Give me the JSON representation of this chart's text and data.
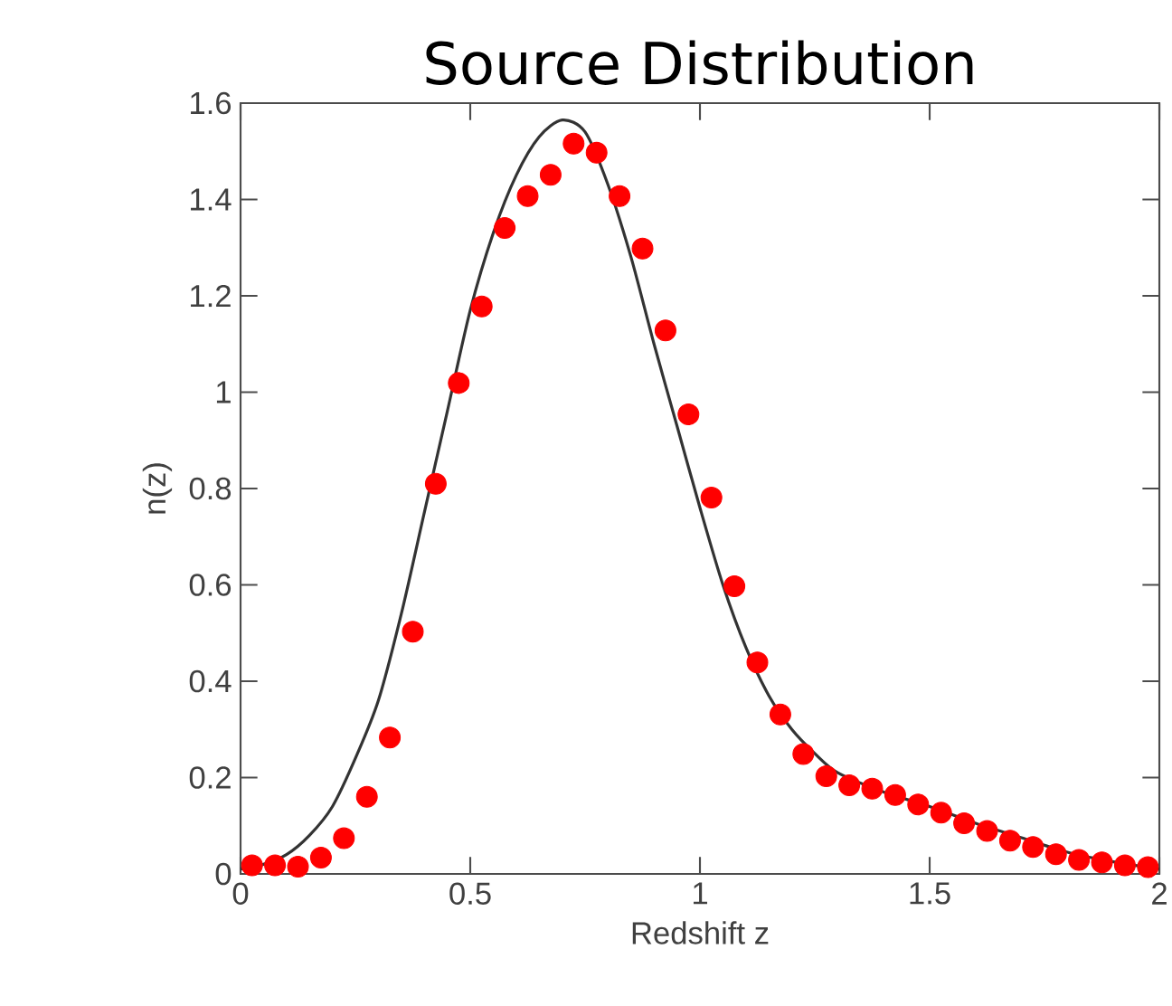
{
  "chart_data": {
    "type": "scatter",
    "title": "Source Distribution",
    "xlabel": "Redshift z",
    "ylabel": "n(z)",
    "xlim": [
      0,
      2
    ],
    "ylim": [
      0,
      1.6
    ],
    "xticks": [
      0,
      0.5,
      1,
      1.5,
      2
    ],
    "yticks": [
      0,
      0.2,
      0.4,
      0.6,
      0.8,
      1,
      1.2,
      1.4,
      1.6
    ],
    "grid": false,
    "series": [
      {
        "type": "line",
        "color": "#333333",
        "marker": "none",
        "line_style": "solid",
        "x": [
          0,
          0.05,
          0.1,
          0.15,
          0.2,
          0.25,
          0.3,
          0.35,
          0.4,
          0.45,
          0.5,
          0.55,
          0.6,
          0.65,
          0.7,
          0.75,
          0.8,
          0.85,
          0.9,
          0.95,
          1.0,
          1.05,
          1.1,
          1.15,
          1.2,
          1.25,
          1.3,
          1.4,
          1.5,
          1.6,
          1.7,
          1.8,
          1.9,
          2.0
        ],
        "values": [
          0.01,
          0.02,
          0.04,
          0.08,
          0.14,
          0.24,
          0.36,
          0.54,
          0.75,
          0.96,
          1.17,
          1.33,
          1.45,
          1.53,
          1.565,
          1.54,
          1.43,
          1.28,
          1.1,
          0.93,
          0.76,
          0.6,
          0.47,
          0.37,
          0.3,
          0.25,
          0.21,
          0.17,
          0.14,
          0.105,
          0.075,
          0.045,
          0.025,
          0.01
        ]
      },
      {
        "color": "#ff0000",
        "marker": "circle",
        "x": [
          0.025,
          0.075,
          0.125,
          0.175,
          0.225,
          0.275,
          0.325,
          0.375,
          0.425,
          0.475,
          0.525,
          0.575,
          0.625,
          0.675,
          0.725,
          0.775,
          0.825,
          0.875,
          0.925,
          0.975,
          1.025,
          1.075,
          1.125,
          1.175,
          1.225,
          1.275,
          1.325,
          1.375,
          1.425,
          1.475,
          1.525,
          1.575,
          1.625,
          1.675,
          1.725,
          1.775,
          1.825,
          1.875,
          1.925,
          1.975
        ],
        "values": [
          0.018,
          0.018,
          0.015,
          0.034,
          0.074,
          0.16,
          0.283,
          0.503,
          0.81,
          1.019,
          1.178,
          1.341,
          1.407,
          1.451,
          1.516,
          1.497,
          1.407,
          1.298,
          1.128,
          0.954,
          0.781,
          0.597,
          0.439,
          0.331,
          0.249,
          0.203,
          0.184,
          0.177,
          0.164,
          0.144,
          0.127,
          0.105,
          0.089,
          0.069,
          0.056,
          0.041,
          0.029,
          0.024,
          0.018,
          0.014
        ]
      }
    ]
  }
}
